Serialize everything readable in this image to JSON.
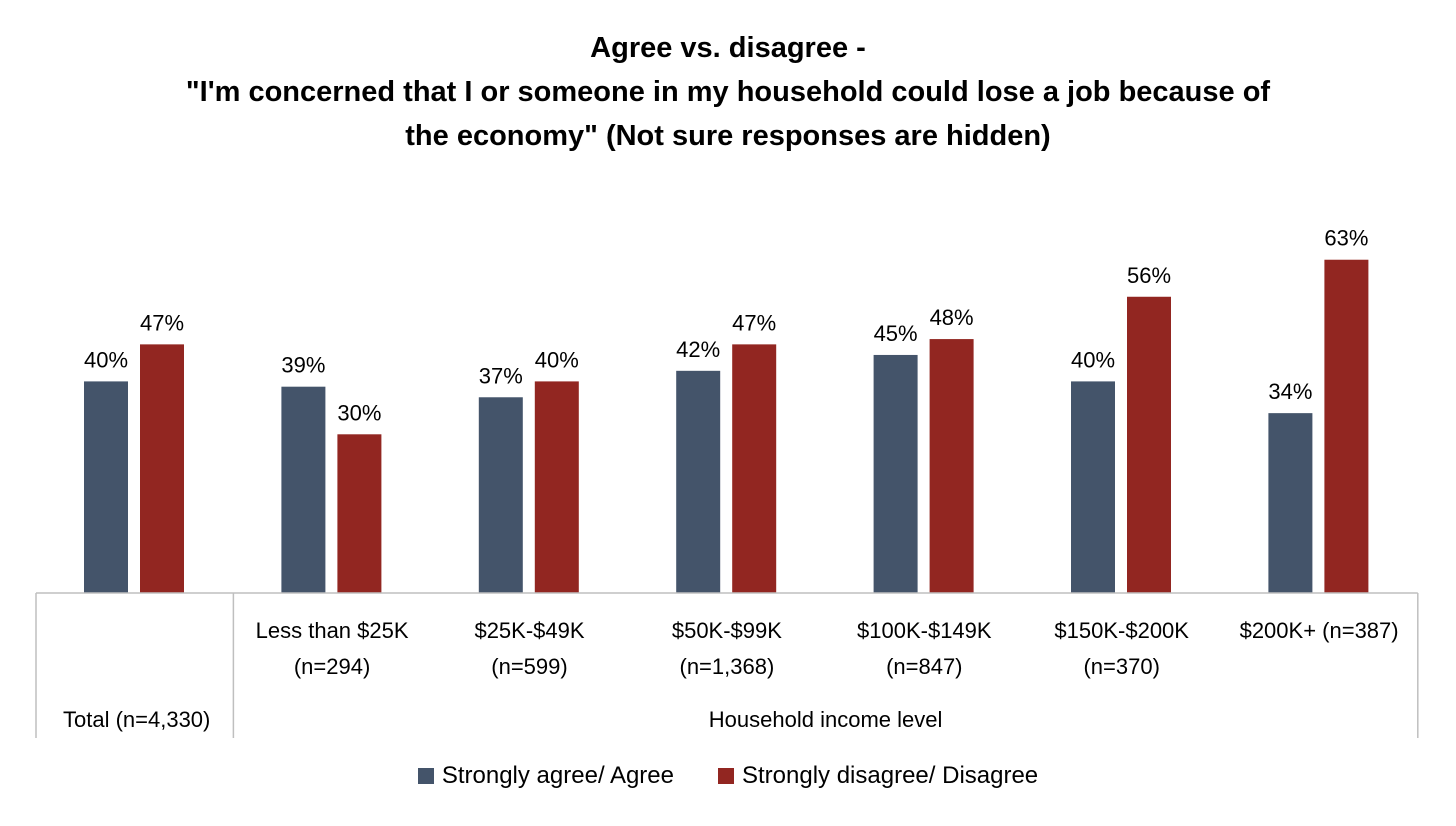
{
  "chart_data": {
    "type": "bar",
    "title_lines": [
      "Agree vs. disagree -",
      "\"I'm concerned that I or someone in my household could lose a job because of",
      "the economy\" (Not sure responses are hidden)"
    ],
    "categories": [
      "Total (n=4,330)",
      "Less than $25K (n=294)",
      "$25K-$49K (n=599)",
      "$50K-$99K (n=1,368)",
      "$100K-$149K (n=847)",
      "$150K-$200K (n=370)",
      "$200K+ (n=387)"
    ],
    "category_label_lines": [
      [
        "Total (n=4,330)"
      ],
      [
        "Less than $25K",
        "(n=294)"
      ],
      [
        "$25K-$49K",
        "(n=599)"
      ],
      [
        "$50K-$99K",
        "(n=1,368)"
      ],
      [
        "$100K-$149K",
        "(n=847)"
      ],
      [
        "$150K-$200K",
        "(n=370)"
      ],
      [
        "$200K+ (n=387)"
      ]
    ],
    "group_label": "Household income level",
    "series": [
      {
        "name": "Strongly agree/ Agree",
        "color": "#44546a",
        "values": [
          40,
          39,
          37,
          42,
          45,
          40,
          34
        ],
        "labels": [
          "40%",
          "39%",
          "37%",
          "42%",
          "45%",
          "40%",
          "34%"
        ]
      },
      {
        "name": "Strongly disagree/ Disagree",
        "color": "#922621",
        "values": [
          47,
          30,
          40,
          47,
          48,
          56,
          63
        ],
        "labels": [
          "47%",
          "30%",
          "40%",
          "47%",
          "48%",
          "56%",
          "63%"
        ]
      }
    ],
    "ylim": [
      0,
      63
    ],
    "grid": false,
    "legend_position": "bottom"
  }
}
